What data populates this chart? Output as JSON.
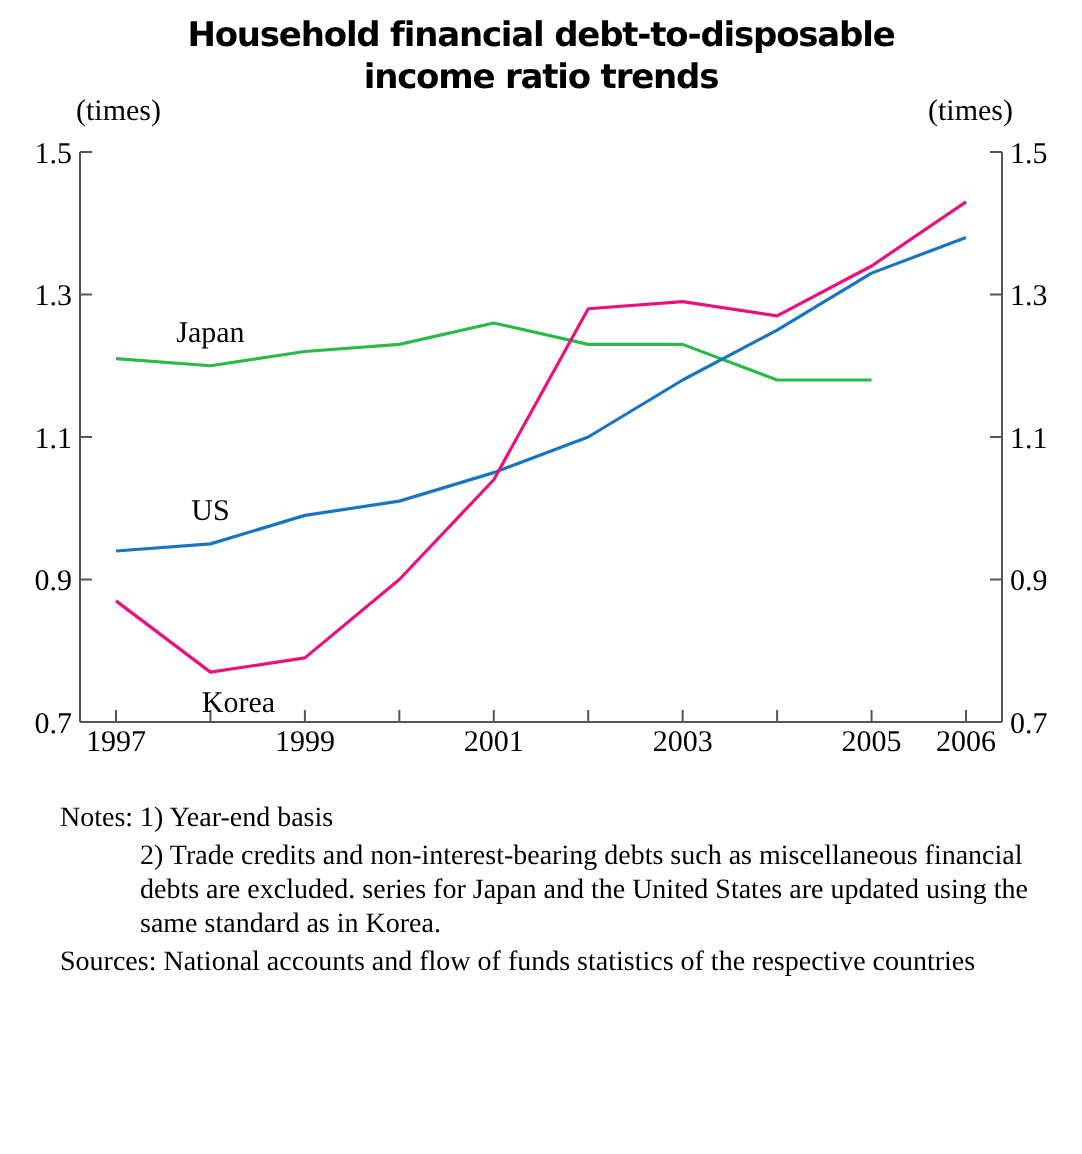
{
  "chart_data": {
    "type": "line",
    "title": "Household financial debt-to-disposable income ratio trends",
    "ylabel": "(times)",
    "y2label": "(times)",
    "categories": [
      "1997",
      null,
      "1999",
      null,
      "2001",
      null,
      "2003",
      null,
      "2005",
      "2006"
    ],
    "series": [
      {
        "name": "Japan",
        "color": "#2db84a",
        "values": [
          1.21,
          1.2,
          1.22,
          1.23,
          1.26,
          1.23,
          1.23,
          1.18,
          1.18,
          null
        ]
      },
      {
        "name": "US",
        "color": "#1a75c0",
        "values": [
          0.94,
          0.95,
          0.99,
          1.01,
          1.05,
          1.1,
          1.18,
          1.25,
          1.33,
          1.38
        ]
      },
      {
        "name": "Korea",
        "color": "#e8127f",
        "values": [
          0.87,
          0.77,
          0.79,
          0.9,
          1.04,
          1.28,
          1.29,
          1.27,
          1.34,
          1.43
        ]
      }
    ],
    "ylim": [
      0.7,
      1.5
    ],
    "yticks": [
      0.7,
      0.9,
      1.1,
      1.3,
      1.5
    ],
    "y2lim": [
      0.7,
      1.5
    ],
    "y2ticks": [
      0.7,
      0.9,
      1.1,
      1.3,
      1.5
    ],
    "grid": false,
    "marker": "none",
    "line_style": "solid",
    "annotations": [
      "Notes: 1) Year-end basis",
      "2) Trade credits and non-interest-bearing debts such as miscellaneous financial debts are excluded. series for Japan and the United States are updated using the same standard as in Korea.",
      "Sources: National accounts and flow of funds statistics of the respective countries"
    ]
  }
}
